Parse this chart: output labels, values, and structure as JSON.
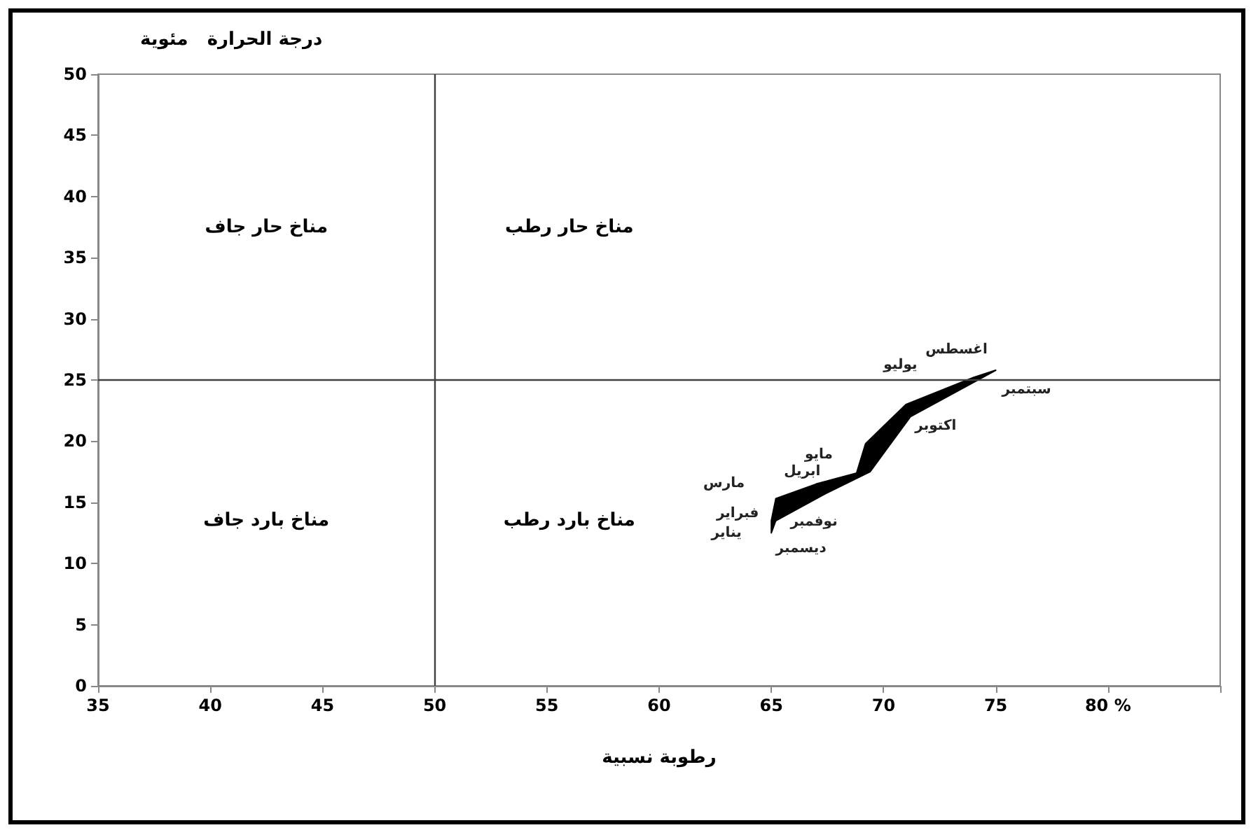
{
  "chart_data": {
    "type": "area",
    "xlabel": "رطوبة نسبية",
    "ylabel": "درجة الحرارة   مئوية",
    "x": [
      65.0,
      65.0,
      65.2,
      67.0,
      68.8,
      69.2,
      71.0,
      74.0,
      75.0,
      71.2,
      69.4,
      67.4,
      65.2
    ],
    "series": [
      {
        "color": "#000000",
        "values": [
          12.5,
          13.5,
          15.3,
          16.5,
          17.4,
          19.8,
          23.0,
          25.2,
          25.8,
          22.0,
          17.5,
          15.7,
          13.5
        ]
      }
    ],
    "xlim": [
      35,
      85
    ],
    "xticks": [
      35,
      40,
      45,
      50,
      55,
      60,
      65,
      70,
      75,
      {
        "value": 80,
        "label": "80 %"
      },
      {
        "value": 85,
        "label": null
      }
    ],
    "ylim": [
      0,
      50
    ],
    "yticks": [
      0,
      5,
      10,
      15,
      20,
      25,
      30,
      35,
      40,
      45,
      50
    ],
    "grid": false,
    "ref_lines": [
      {
        "axis": "x",
        "value": 50,
        "color": "#404040"
      },
      {
        "axis": "y",
        "value": 25,
        "color": "#404040"
      }
    ],
    "annotations": [
      "مناخ حار جاف",
      "مناخ حار رطب",
      "مناخ بارد جاف",
      "مناخ بارد رطب",
      {
        "text": "يناير",
        "x": 65.0,
        "y": 12.5
      },
      {
        "text": "فبراير",
        "x": 65.0,
        "y": 13.5
      },
      {
        "text": "مارس",
        "x": 65.2,
        "y": 15.3
      },
      {
        "text": "ابريل",
        "x": 67.0,
        "y": 16.5
      },
      {
        "text": "مايو",
        "x": 68.8,
        "y": 17.4
      },
      {
        "text": "يوليو",
        "x": 71.0,
        "y": 23.0
      },
      {
        "text": "اغسطس",
        "x": 74.0,
        "y": 25.2
      },
      {
        "text": "سبتمبر",
        "x": 75.0,
        "y": 25.8
      },
      {
        "text": "اكتوبر",
        "x": 71.2,
        "y": 22.0
      },
      {
        "text": "نوفمبر",
        "x": 67.4,
        "y": 15.7
      },
      {
        "text": "ديسمبر",
        "x": 65.2,
        "y": 13.5
      }
    ]
  }
}
